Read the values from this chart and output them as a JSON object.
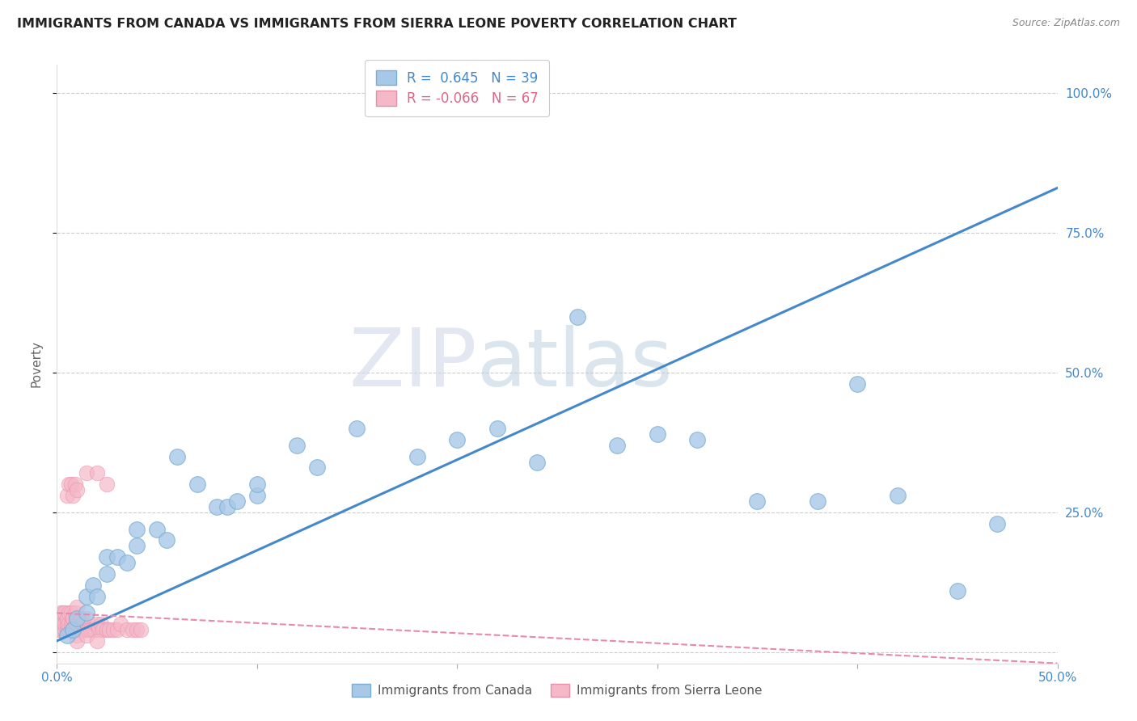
{
  "title": "IMMIGRANTS FROM CANADA VS IMMIGRANTS FROM SIERRA LEONE POVERTY CORRELATION CHART",
  "source": "Source: ZipAtlas.com",
  "ylabel": "Poverty",
  "xlim": [
    0.0,
    0.5
  ],
  "ylim": [
    -0.02,
    1.05
  ],
  "canada_color": "#a8c8e8",
  "canada_edge_color": "#7aadd4",
  "sierra_leone_color": "#f4b8c8",
  "sierra_leone_edge_color": "#e890a8",
  "canada_R": 0.645,
  "canada_N": 39,
  "sierra_leone_R": -0.066,
  "sierra_leone_N": 67,
  "watermark_zip": "ZIP",
  "watermark_atlas": "atlas",
  "background_color": "#ffffff",
  "grid_color": "#cccccc",
  "canada_line_color": "#4488cc",
  "sierra_leone_line_color": "#e888aa",
  "canada_x": [
    0.005,
    0.008,
    0.01,
    0.015,
    0.015,
    0.018,
    0.02,
    0.025,
    0.025,
    0.03,
    0.035,
    0.04,
    0.04,
    0.05,
    0.055,
    0.06,
    0.07,
    0.08,
    0.085,
    0.09,
    0.1,
    0.1,
    0.12,
    0.13,
    0.15,
    0.18,
    0.2,
    0.22,
    0.24,
    0.26,
    0.28,
    0.3,
    0.32,
    0.35,
    0.38,
    0.4,
    0.42,
    0.45,
    0.47
  ],
  "canada_y": [
    0.03,
    0.04,
    0.06,
    0.07,
    0.1,
    0.12,
    0.1,
    0.14,
    0.17,
    0.17,
    0.16,
    0.19,
    0.22,
    0.22,
    0.2,
    0.35,
    0.3,
    0.26,
    0.26,
    0.27,
    0.28,
    0.3,
    0.37,
    0.33,
    0.4,
    0.35,
    0.38,
    0.4,
    0.34,
    0.6,
    0.37,
    0.39,
    0.38,
    0.27,
    0.27,
    0.48,
    0.28,
    0.11,
    0.23
  ],
  "sierra_leone_x": [
    0.001,
    0.001,
    0.002,
    0.002,
    0.002,
    0.003,
    0.003,
    0.003,
    0.004,
    0.004,
    0.004,
    0.005,
    0.005,
    0.005,
    0.006,
    0.006,
    0.006,
    0.007,
    0.007,
    0.007,
    0.008,
    0.008,
    0.008,
    0.009,
    0.009,
    0.009,
    0.01,
    0.01,
    0.01,
    0.01,
    0.012,
    0.012,
    0.013,
    0.013,
    0.014,
    0.015,
    0.015,
    0.016,
    0.017,
    0.018,
    0.019,
    0.02,
    0.021,
    0.022,
    0.023,
    0.025,
    0.026,
    0.028,
    0.03,
    0.032,
    0.035,
    0.038,
    0.04,
    0.042,
    0.005,
    0.006,
    0.007,
    0.008,
    0.009,
    0.01,
    0.015,
    0.02,
    0.025,
    0.01,
    0.01,
    0.015,
    0.02
  ],
  "sierra_leone_y": [
    0.04,
    0.05,
    0.04,
    0.06,
    0.07,
    0.04,
    0.05,
    0.07,
    0.04,
    0.05,
    0.07,
    0.04,
    0.05,
    0.06,
    0.04,
    0.05,
    0.07,
    0.04,
    0.05,
    0.07,
    0.04,
    0.05,
    0.06,
    0.04,
    0.05,
    0.07,
    0.04,
    0.05,
    0.06,
    0.08,
    0.04,
    0.06,
    0.04,
    0.05,
    0.04,
    0.04,
    0.06,
    0.04,
    0.04,
    0.04,
    0.04,
    0.05,
    0.04,
    0.05,
    0.04,
    0.04,
    0.04,
    0.04,
    0.04,
    0.05,
    0.04,
    0.04,
    0.04,
    0.04,
    0.28,
    0.3,
    0.3,
    0.28,
    0.3,
    0.29,
    0.32,
    0.32,
    0.3,
    0.03,
    0.02,
    0.03,
    0.02
  ]
}
